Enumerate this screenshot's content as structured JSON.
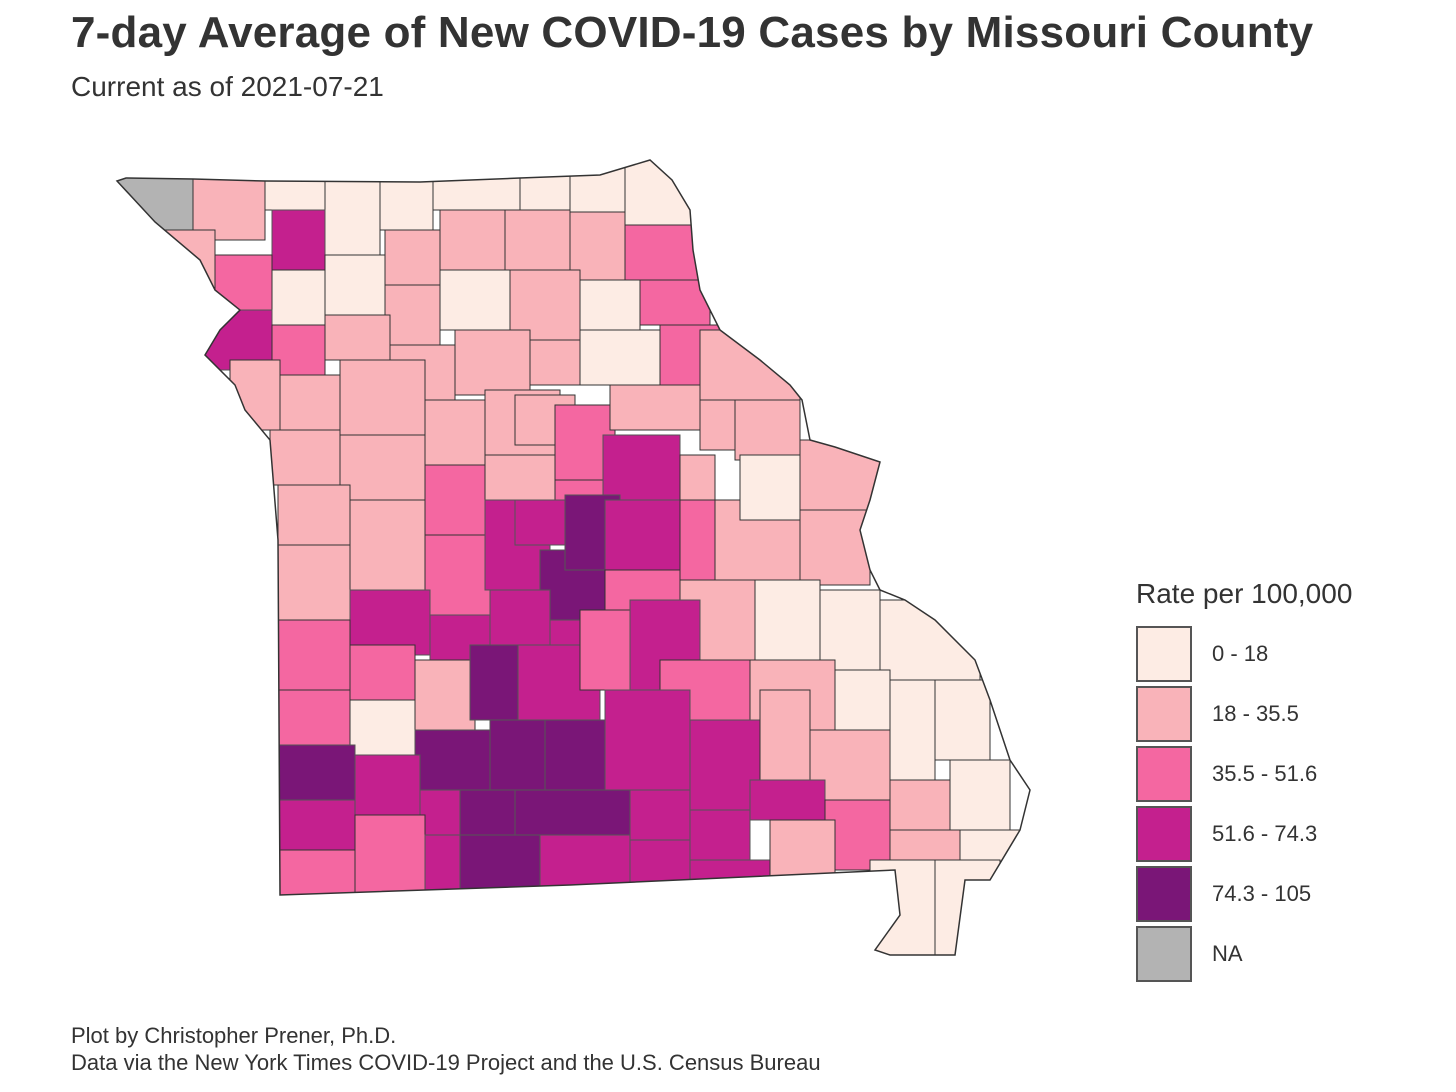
{
  "title": "7-day Average of New COVID-19 Cases by Missouri County",
  "subtitle": "Current as of 2021-07-21",
  "legend": {
    "title": "Rate per 100,000",
    "items": [
      {
        "label": "0 - 18",
        "color": "#fdece4"
      },
      {
        "label": "18 - 35.5",
        "color": "#f9b3b9"
      },
      {
        "label": "35.5 - 51.6",
        "color": "#f467a1"
      },
      {
        "label": "51.6 - 74.3",
        "color": "#c4208e"
      },
      {
        "label": "74.3 - 105",
        "color": "#7a1677"
      },
      {
        "label": "NA",
        "color": "#b3b3b3"
      }
    ]
  },
  "caption": {
    "line1": "Plot by Christopher Prener, Ph.D.",
    "line2": "Data via the New York Times COVID-19 Project and the U.S. Census Bureau"
  },
  "colors": {
    "outline_light": "#333333",
    "outline_dark": "#555555"
  }
}
